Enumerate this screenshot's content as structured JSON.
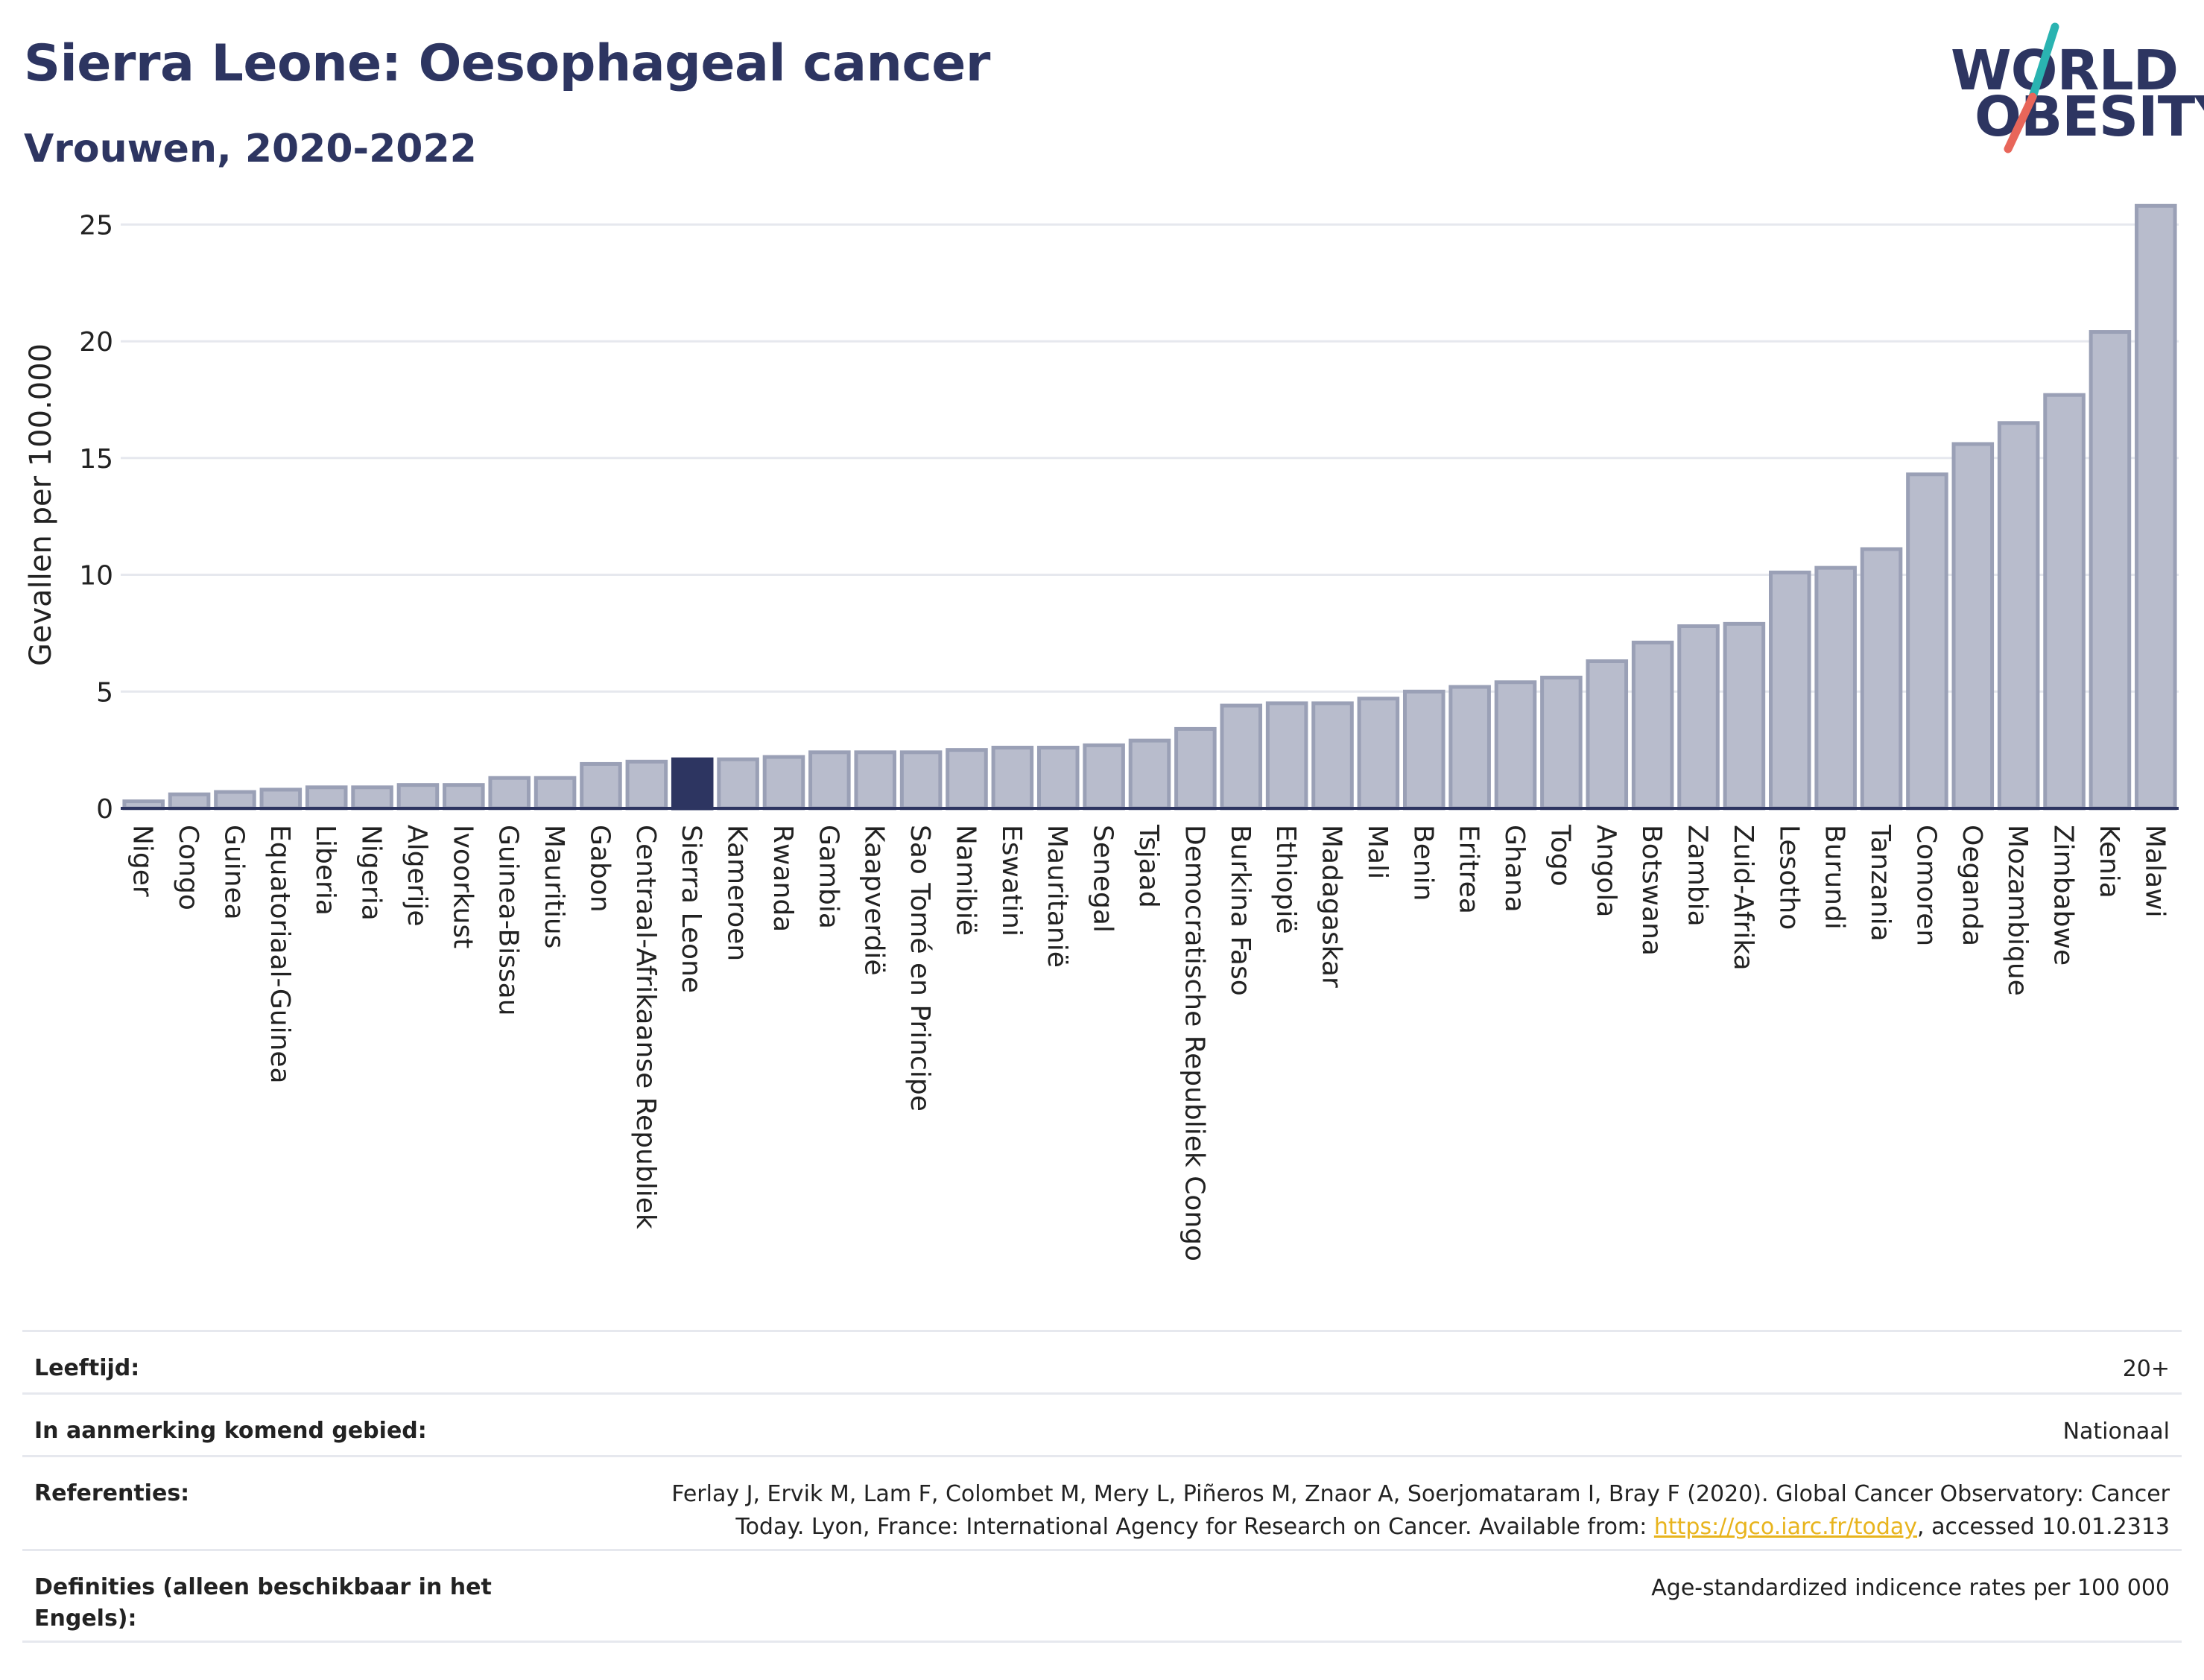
{
  "header": {
    "title": "Sierra Leone: Oesophageal cancer",
    "subtitle": "Vrouwen, 2020-2022"
  },
  "logo": {
    "line1": "WORLD",
    "line2": "OBESITY",
    "slash_color_top": "#2ab3b1",
    "slash_color_bottom": "#e8665a"
  },
  "colors": {
    "bar": "#b8bccc",
    "bar_border": "#9aa0b6",
    "highlight": "#2d3561",
    "text": "#2d3561"
  },
  "chart_data": {
    "type": "bar",
    "title": "",
    "xlabel": "",
    "ylabel": "Gevallen per 100.000",
    "ylim": [
      0,
      26
    ],
    "yticks": [
      0,
      5,
      10,
      15,
      20,
      25
    ],
    "grid": true,
    "highlight_category": "Sierra Leone",
    "categories": [
      "Niger",
      "Congo",
      "Guinea",
      "Equatoriaal-Guinea",
      "Liberia",
      "Nigeria",
      "Algerije",
      "Ivoorkust",
      "Guinea-Bissau",
      "Mauritius",
      "Gabon",
      "Centraal-Afrikaanse Republiek",
      "Sierra Leone",
      "Kameroen",
      "Rwanda",
      "Gambia",
      "Kaapverdië",
      "Sao Tomé en Principe",
      "Namibië",
      "Eswatini",
      "Mauritanië",
      "Senegal",
      "Tsjaad",
      "Democratische Republiek Congo",
      "Burkina Faso",
      "Ethiopië",
      "Madagaskar",
      "Mali",
      "Benin",
      "Eritrea",
      "Ghana",
      "Togo",
      "Angola",
      "Botswana",
      "Zambia",
      "Zuid-Afrika",
      "Lesotho",
      "Burundi",
      "Tanzania",
      "Comoren",
      "Oeganda",
      "Mozambique",
      "Zimbabwe",
      "Kenia",
      "Malawi"
    ],
    "values": [
      0.3,
      0.6,
      0.7,
      0.8,
      0.9,
      0.9,
      1.0,
      1.0,
      1.3,
      1.3,
      1.9,
      2.0,
      2.1,
      2.1,
      2.2,
      2.4,
      2.4,
      2.4,
      2.5,
      2.6,
      2.6,
      2.7,
      2.9,
      3.4,
      4.4,
      4.5,
      4.5,
      4.7,
      5.0,
      5.2,
      5.4,
      5.6,
      6.3,
      7.1,
      7.8,
      7.9,
      10.1,
      10.3,
      11.1,
      14.3,
      15.6,
      16.5,
      17.7,
      20.4,
      25.8
    ]
  },
  "meta": {
    "age_label": "Leeftijd:",
    "age_value": "20+",
    "area_label": "In aanmerking komend gebied:",
    "area_value": "Nationaal",
    "ref_label": "Referenties:",
    "ref_text_1": "Ferlay J, Ervik M, Lam F, Colombet M, Mery L, Piñeros M, Znaor A, Soerjomataram I, Bray F (2020). Global Cancer Observatory: Cancer",
    "ref_text_2": "Today. Lyon, France: International Agency for Research on Cancer. Available from: ",
    "ref_link": "https://gco.iarc.fr/today",
    "ref_text_3": ", accessed 10.01.2313",
    "def_label": "Definities (alleen beschikbaar in het Engels):",
    "def_value": "Age-standardized indicence rates per 100 000"
  }
}
